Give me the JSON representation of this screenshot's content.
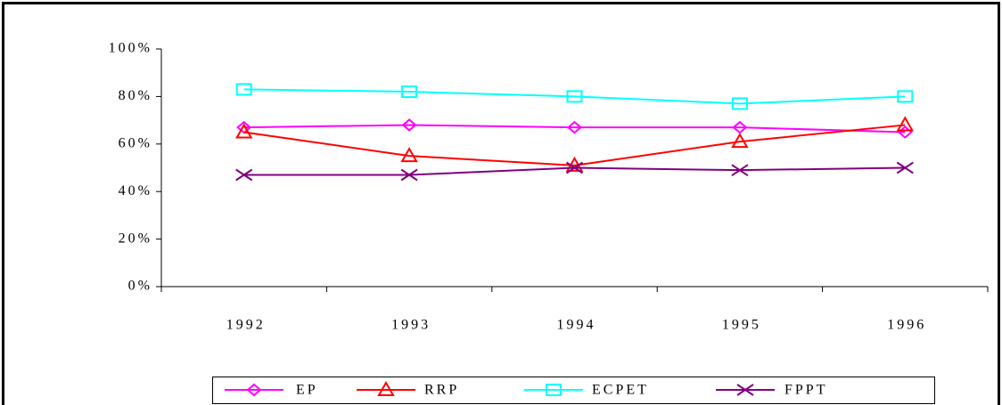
{
  "chart_data": {
    "type": "line",
    "categories": [
      "1992",
      "1993",
      "1994",
      "1995",
      "1996"
    ],
    "series": [
      {
        "name": "EP",
        "color": "#ff00ff",
        "marker": "diamond",
        "values": [
          67,
          68,
          67,
          67,
          65
        ]
      },
      {
        "name": "RRP",
        "color": "#ff0000",
        "marker": "triangle",
        "values": [
          65,
          55,
          51,
          61,
          68
        ]
      },
      {
        "name": "ECPET",
        "color": "#00ffff",
        "marker": "square",
        "values": [
          83,
          82,
          80,
          77,
          80
        ]
      },
      {
        "name": "FPPT",
        "color": "#800080",
        "marker": "x",
        "values": [
          47,
          47,
          50,
          49,
          50
        ]
      }
    ],
    "ylim": [
      0,
      100
    ],
    "yticks": [
      {
        "value": 0,
        "label": "0%"
      },
      {
        "value": 20,
        "label": "20%"
      },
      {
        "value": 40,
        "label": "40%"
      },
      {
        "value": 60,
        "label": "60%"
      },
      {
        "value": 80,
        "label": "80%"
      },
      {
        "value": 100,
        "label": "100%"
      }
    ],
    "grid": false,
    "legend": "bottom"
  }
}
